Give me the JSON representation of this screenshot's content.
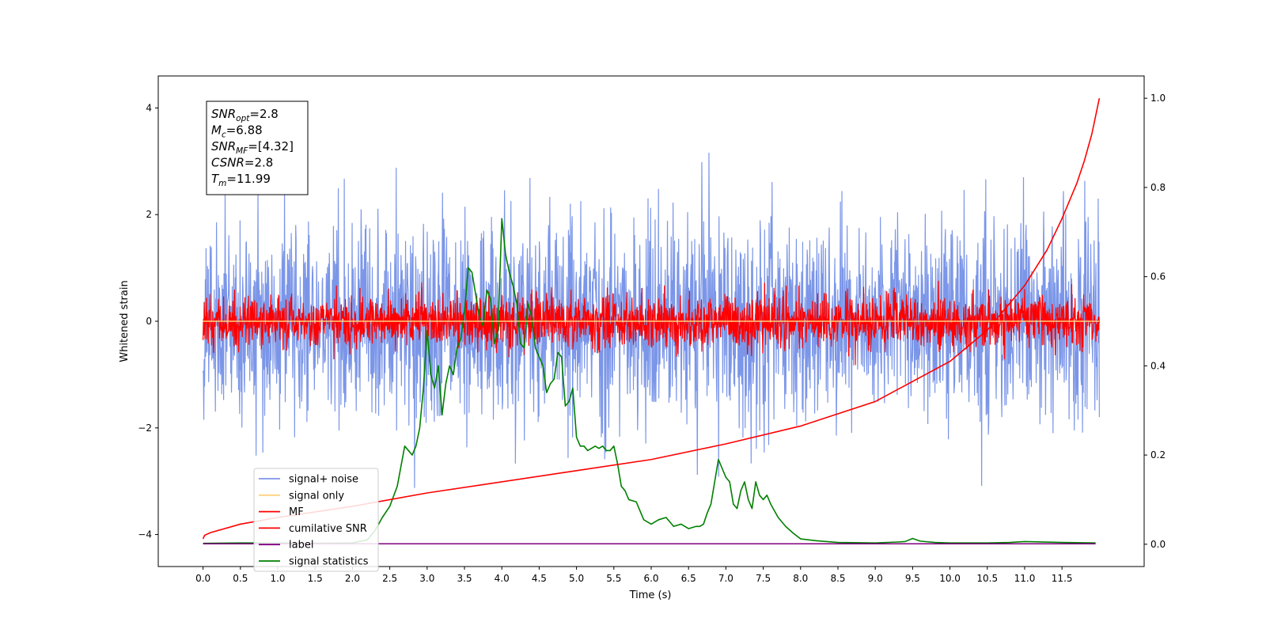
{
  "chart_data": {
    "type": "line",
    "xlabel": "Time (s)",
    "ylabel": "Whitened strain",
    "xlim": [
      -0.6,
      12.6
    ],
    "ylim": [
      -4.6,
      4.6
    ],
    "y2lim": [
      -0.05,
      1.05
    ],
    "x_ticks": [
      0.0,
      0.5,
      1.0,
      1.5,
      2.0,
      2.5,
      3.0,
      3.5,
      4.0,
      4.5,
      5.0,
      5.5,
      6.0,
      6.5,
      7.0,
      7.5,
      8.0,
      8.5,
      9.0,
      9.5,
      10.0,
      10.5,
      11.0,
      11.5
    ],
    "x_tick_labels": [
      "0.0",
      "0.5",
      "1.0",
      "1.5",
      "2.0",
      "2.5",
      "3.0",
      "3.5",
      "4.0",
      "4.5",
      "5.0",
      "5.5",
      "6.0",
      "6.5",
      "7.0",
      "7.5",
      "8.0",
      "8.5",
      "9.0",
      "9.5",
      "10.0",
      "10.5",
      "11.0",
      "11.5"
    ],
    "y_ticks": [
      -4,
      -2,
      0,
      2,
      4
    ],
    "y_tick_labels": [
      "−4",
      "−2",
      "0",
      "2",
      "4"
    ],
    "y2_ticks": [
      0.0,
      0.2,
      0.4,
      0.6,
      0.8,
      1.0
    ],
    "y2_tick_labels": [
      "0.0",
      "0.2",
      "0.4",
      "0.6",
      "0.8",
      "1.0"
    ],
    "grid": false,
    "legend_position": "lower-left",
    "series": [
      {
        "name": "signal+ noise",
        "color": "#7b96e8",
        "axis": "left",
        "kind": "noise",
        "t_start": 0.0,
        "t_end": 12.0,
        "samples": 2400,
        "amplitude": 2.6
      },
      {
        "name": "signal only",
        "color": "#ffd27f",
        "axis": "left",
        "kind": "flat",
        "x": [
          0.0,
          12.0
        ],
        "y": [
          0.0,
          0.0
        ]
      },
      {
        "name": "MF",
        "color": "#ff0000",
        "axis": "left",
        "kind": "noise",
        "t_start": 0.0,
        "t_end": 12.0,
        "samples": 2400,
        "amplitude": 0.7
      },
      {
        "name": "cumilative SNR",
        "color": "#ff0000",
        "axis": "right",
        "x": [
          0.0,
          0.02,
          0.1,
          0.5,
          1.0,
          2.0,
          3.0,
          4.0,
          5.0,
          6.0,
          7.0,
          8.0,
          9.0,
          10.0,
          10.5,
          11.0,
          11.3,
          11.5,
          11.7,
          11.8,
          11.9,
          11.95,
          12.0
        ],
        "y": [
          0.012,
          0.02,
          0.026,
          0.045,
          0.06,
          0.085,
          0.115,
          0.14,
          0.165,
          0.19,
          0.225,
          0.265,
          0.32,
          0.41,
          0.48,
          0.58,
          0.66,
          0.73,
          0.81,
          0.86,
          0.92,
          0.96,
          1.0
        ]
      },
      {
        "name": "label",
        "color": "#800080",
        "axis": "right",
        "x": [
          0.0,
          11.95
        ],
        "y": [
          0.001,
          0.001
        ]
      },
      {
        "name": "signal statistics",
        "color": "#008000",
        "axis": "right",
        "x": [
          0.0,
          0.5,
          1.0,
          1.5,
          2.0,
          2.2,
          2.3,
          2.4,
          2.5,
          2.6,
          2.7,
          2.75,
          2.8,
          2.85,
          2.9,
          2.95,
          3.0,
          3.05,
          3.1,
          3.15,
          3.2,
          3.25,
          3.3,
          3.35,
          3.4,
          3.45,
          3.5,
          3.55,
          3.6,
          3.65,
          3.7,
          3.75,
          3.8,
          3.85,
          3.9,
          3.95,
          4.0,
          4.05,
          4.1,
          4.15,
          4.2,
          4.25,
          4.3,
          4.35,
          4.4,
          4.45,
          4.5,
          4.55,
          4.6,
          4.65,
          4.7,
          4.75,
          4.8,
          4.85,
          4.9,
          4.95,
          5.0,
          5.05,
          5.1,
          5.15,
          5.2,
          5.25,
          5.3,
          5.35,
          5.4,
          5.45,
          5.5,
          5.55,
          5.6,
          5.65,
          5.7,
          5.8,
          5.9,
          6.0,
          6.1,
          6.2,
          6.3,
          6.4,
          6.5,
          6.6,
          6.65,
          6.7,
          6.75,
          6.8,
          6.85,
          6.9,
          6.95,
          7.0,
          7.05,
          7.1,
          7.15,
          7.2,
          7.25,
          7.3,
          7.35,
          7.4,
          7.45,
          7.5,
          7.55,
          7.6,
          7.7,
          7.8,
          7.9,
          8.0,
          8.2,
          8.5,
          9.0,
          9.3,
          9.4,
          9.5,
          9.6,
          9.8,
          10.0,
          10.5,
          10.8,
          11.0,
          11.5,
          11.95
        ],
        "y": [
          0.002,
          0.003,
          0.003,
          0.002,
          0.003,
          0.01,
          0.03,
          0.06,
          0.085,
          0.13,
          0.22,
          0.21,
          0.2,
          0.22,
          0.26,
          0.35,
          0.48,
          0.38,
          0.35,
          0.4,
          0.29,
          0.36,
          0.4,
          0.38,
          0.44,
          0.46,
          0.52,
          0.62,
          0.61,
          0.56,
          0.51,
          0.49,
          0.57,
          0.55,
          0.45,
          0.48,
          0.73,
          0.65,
          0.61,
          0.58,
          0.54,
          0.45,
          0.44,
          0.54,
          0.51,
          0.44,
          0.42,
          0.4,
          0.34,
          0.36,
          0.37,
          0.43,
          0.42,
          0.31,
          0.32,
          0.35,
          0.24,
          0.22,
          0.22,
          0.21,
          0.215,
          0.22,
          0.215,
          0.22,
          0.21,
          0.21,
          0.22,
          0.18,
          0.13,
          0.12,
          0.1,
          0.095,
          0.055,
          0.045,
          0.055,
          0.06,
          0.04,
          0.045,
          0.035,
          0.04,
          0.04,
          0.045,
          0.07,
          0.09,
          0.14,
          0.19,
          0.17,
          0.15,
          0.14,
          0.09,
          0.08,
          0.12,
          0.14,
          0.1,
          0.08,
          0.14,
          0.11,
          0.1,
          0.11,
          0.09,
          0.06,
          0.04,
          0.025,
          0.012,
          0.008,
          0.004,
          0.003,
          0.005,
          0.006,
          0.013,
          0.007,
          0.004,
          0.003,
          0.003,
          0.004,
          0.006,
          0.004,
          0.003
        ]
      }
    ],
    "annotation": {
      "lines": [
        {
          "label_main": "SNR",
          "label_sub": "opt",
          "value": "=2.8"
        },
        {
          "label_main": "M",
          "label_sub": "c",
          "value": "=6.88"
        },
        {
          "label_main": "SNR",
          "label_sub": "MF",
          "value": "=[4.32]"
        },
        {
          "label_main": "CSNR",
          "label_sub": "",
          "value": "=2.8"
        },
        {
          "label_main": "T",
          "label_sub": "m",
          "value": "=11.99"
        }
      ]
    }
  }
}
